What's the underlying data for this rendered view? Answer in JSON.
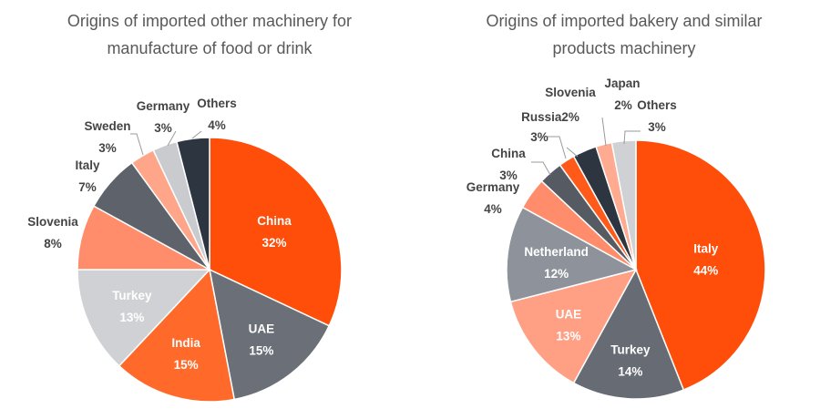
{
  "chart_data": [
    {
      "type": "pie",
      "title_lines": [
        "Origins of imported other machinery for",
        "manufacture of food or drink"
      ],
      "slices": [
        {
          "label": "China",
          "value": 32,
          "value_label": "32%",
          "color": "#ff4d0a"
        },
        {
          "label": "UAE",
          "value": 15,
          "value_label": "15%",
          "color": "#6a6f78"
        },
        {
          "label": "India",
          "value": 15,
          "value_label": "15%",
          "color": "#ff6a2b"
        },
        {
          "label": "Turkey",
          "value": 13,
          "value_label": "13%",
          "color": "#cfd1d4"
        },
        {
          "label": "Slovenia",
          "value": 8,
          "value_label": "8%",
          "color": "#ff8c6a"
        },
        {
          "label": "Italy",
          "value": 7,
          "value_label": "7%",
          "color": "#5e636b"
        },
        {
          "label": "Sweden",
          "value": 3,
          "value_label": "3%",
          "color": "#ffa58a"
        },
        {
          "label": "Germany",
          "value": 3,
          "value_label": "3%",
          "color": "#c9cbce"
        },
        {
          "label": "Others",
          "value": 4,
          "value_label": "4%",
          "color": "#2d3540"
        }
      ]
    },
    {
      "type": "pie",
      "title_lines": [
        "Origins of imported bakery and similar",
        "products machinery"
      ],
      "slices": [
        {
          "label": "Italy",
          "value": 44,
          "value_label": "44%",
          "color": "#ff4d0a"
        },
        {
          "label": "Turkey",
          "value": 14,
          "value_label": "14%",
          "color": "#676c74"
        },
        {
          "label": "UAE",
          "value": 13,
          "value_label": "13%",
          "color": "#ffa085"
        },
        {
          "label": "Netherland",
          "value": 12,
          "value_label": "12%",
          "color": "#8e939b"
        },
        {
          "label": "Germany",
          "value": 4,
          "value_label": "4%",
          "color": "#ff8c6a"
        },
        {
          "label": "China",
          "value": 3,
          "value_label": "3%",
          "color": "#565b63"
        },
        {
          "label": "Russia",
          "value": 2,
          "value_label": "2%",
          "color": "#ff5a1a"
        },
        {
          "label": "Slovenia",
          "value": 3,
          "value_label": "3%",
          "color": "#2d3540"
        },
        {
          "label": "Japan",
          "value": 2,
          "value_label": "2%",
          "color": "#ffab92"
        },
        {
          "label": "Others",
          "value": 3,
          "value_label": "3%",
          "color": "#cfd1d4"
        }
      ]
    }
  ]
}
